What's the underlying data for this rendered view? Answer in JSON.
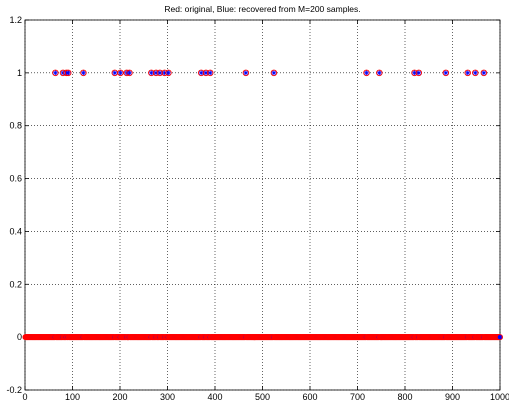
{
  "chart_data": {
    "type": "scatter",
    "title": "Red: original, Blue: recovered from M=200 samples.",
    "xlabel": "",
    "ylabel": "",
    "xlim": [
      0,
      1000
    ],
    "ylim": [
      -0.2,
      1.2
    ],
    "x_ticks": [
      "0",
      "100",
      "200",
      "300",
      "400",
      "500",
      "600",
      "700",
      "800",
      "900",
      "1000"
    ],
    "y_ticks": [
      "-0.2",
      "0",
      "0.2",
      "0.4",
      "0.6",
      "0.8",
      "1",
      "1.2"
    ],
    "grid": true,
    "n_samples": 1000,
    "nonzero_indices": [
      64,
      80,
      87,
      91,
      123,
      189,
      201,
      214,
      220,
      266,
      276,
      284,
      294,
      302,
      371,
      381,
      390,
      465,
      524,
      719,
      746,
      820,
      829,
      886,
      932,
      948,
      966
    ],
    "nonzero_value": 1,
    "zero_value": 0,
    "series": [
      {
        "name": "original",
        "color": "#ff0000",
        "marker": "circle"
      },
      {
        "name": "recovered",
        "color": "#0000ff",
        "marker": "star"
      }
    ]
  }
}
